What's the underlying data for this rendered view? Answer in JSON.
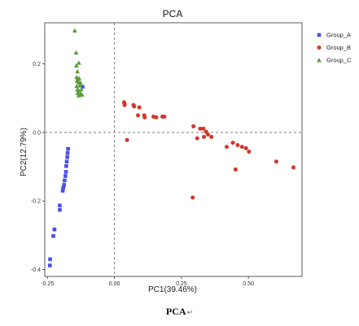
{
  "caption": "PCA",
  "caption_mark": "↵",
  "colors": {
    "Group_A": "#4a4fe8",
    "Group_B": "#d0362b",
    "Group_C": "#5a9a3c"
  },
  "chart_data": {
    "type": "scatter",
    "title": "PCA",
    "xlabel": "PC1(39.46%)",
    "ylabel": "PC2(12.79%)",
    "xlim": [
      -0.26,
      0.7
    ],
    "ylim": [
      -0.42,
      0.32
    ],
    "xticks": [
      -0.25,
      0.0,
      0.25,
      0.5
    ],
    "xtick_labels": [
      "-0.25",
      "0.00",
      "0.25",
      "0.50"
    ],
    "yticks": [
      -0.4,
      -0.2,
      0.0,
      0.2
    ],
    "ytick_labels": [
      "-0.4",
      "-0.2",
      "0.0",
      "0.2"
    ],
    "reference_lines": {
      "x": 0,
      "y": 0,
      "style": "dashed"
    },
    "legend_position": "top-right",
    "series": [
      {
        "name": "Group_A",
        "marker": "square",
        "color": "#4a4fe8",
        "points": [
          [
            -0.241,
            -0.388
          ],
          [
            -0.24,
            -0.37
          ],
          [
            -0.228,
            -0.302
          ],
          [
            -0.224,
            -0.283
          ],
          [
            -0.204,
            -0.226
          ],
          [
            -0.204,
            -0.213
          ],
          [
            -0.193,
            -0.17
          ],
          [
            -0.191,
            -0.162
          ],
          [
            -0.188,
            -0.153
          ],
          [
            -0.186,
            -0.14
          ],
          [
            -0.183,
            -0.127
          ],
          [
            -0.181,
            -0.115
          ],
          [
            -0.18,
            -0.098
          ],
          [
            -0.178,
            -0.085
          ],
          [
            -0.176,
            -0.072
          ],
          [
            -0.175,
            -0.06
          ],
          [
            -0.173,
            -0.048
          ],
          [
            -0.119,
            0.133
          ]
        ]
      },
      {
        "name": "Group_B",
        "marker": "circle",
        "color": "#d0362b",
        "points": [
          [
            0.036,
            0.088
          ],
          [
            0.038,
            0.083
          ],
          [
            0.038,
            0.08
          ],
          [
            0.071,
            0.08
          ],
          [
            0.074,
            0.076
          ],
          [
            0.093,
            0.073
          ],
          [
            0.088,
            0.05
          ],
          [
            0.111,
            0.05
          ],
          [
            0.113,
            0.044
          ],
          [
            0.146,
            0.046
          ],
          [
            0.156,
            0.044
          ],
          [
            0.179,
            0.046
          ],
          [
            0.186,
            0.046
          ],
          [
            0.047,
            -0.022
          ],
          [
            0.295,
            0.018
          ],
          [
            0.32,
            0.011
          ],
          [
            0.332,
            0.011
          ],
          [
            0.342,
            0.002
          ],
          [
            0.349,
            -0.006
          ],
          [
            0.309,
            -0.017
          ],
          [
            0.334,
            -0.013
          ],
          [
            0.362,
            -0.013
          ],
          [
            0.419,
            -0.042
          ],
          [
            0.442,
            -0.03
          ],
          [
            0.46,
            -0.037
          ],
          [
            0.476,
            -0.042
          ],
          [
            0.491,
            -0.046
          ],
          [
            0.502,
            -0.056
          ],
          [
            0.452,
            -0.108
          ],
          [
            0.604,
            -0.085
          ],
          [
            0.668,
            -0.102
          ],
          [
            0.292,
            -0.19
          ]
        ]
      },
      {
        "name": "Group_C",
        "marker": "triangle",
        "color": "#5a9a3c",
        "points": [
          [
            -0.148,
            0.297
          ],
          [
            -0.143,
            0.233
          ],
          [
            -0.142,
            0.195
          ],
          [
            -0.133,
            0.203
          ],
          [
            -0.138,
            0.178
          ],
          [
            -0.141,
            0.161
          ],
          [
            -0.137,
            0.156
          ],
          [
            -0.132,
            0.158
          ],
          [
            -0.139,
            0.15
          ],
          [
            -0.133,
            0.145
          ],
          [
            -0.127,
            0.145
          ],
          [
            -0.141,
            0.135
          ],
          [
            -0.129,
            0.137
          ],
          [
            -0.138,
            0.125
          ],
          [
            -0.133,
            0.122
          ],
          [
            -0.124,
            0.125
          ],
          [
            -0.137,
            0.115
          ],
          [
            -0.127,
            0.114
          ],
          [
            -0.133,
            0.108
          ],
          [
            -0.121,
            0.11
          ]
        ]
      }
    ]
  }
}
